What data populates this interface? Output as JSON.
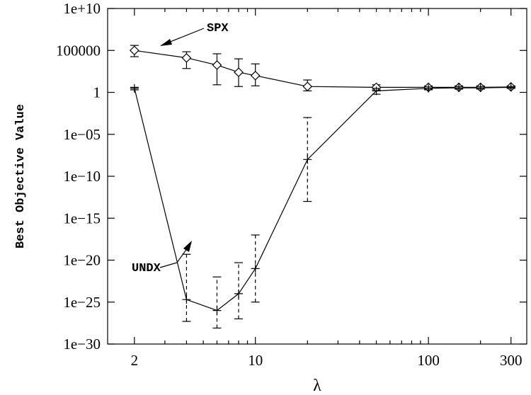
{
  "chart_data": {
    "type": "line",
    "xlabel": "λ",
    "ylabel": "Best Objective Value",
    "x_scale": "log",
    "y_scale": "log",
    "xlim": [
      1.4,
      370
    ],
    "ylim": [
      1e-30,
      10000000000.0
    ],
    "x_ticks": [
      {
        "value": 2,
        "label": "2"
      },
      {
        "value": 10,
        "label": "10"
      },
      {
        "value": 100,
        "label": "100"
      },
      {
        "value": 300,
        "label": "300"
      }
    ],
    "y_ticks": [
      {
        "value": 10000000000.0,
        "label": "1e+10"
      },
      {
        "value": 100000.0,
        "label": "100000"
      },
      {
        "value": 1,
        "label": "1"
      },
      {
        "value": 1e-05,
        "label": "1e−05"
      },
      {
        "value": 1e-10,
        "label": "1e−10"
      },
      {
        "value": 1e-15,
        "label": "1e−15"
      },
      {
        "value": 1e-20,
        "label": "1e−20"
      },
      {
        "value": 1e-25,
        "label": "1e−25"
      },
      {
        "value": 1e-30,
        "label": "1e−30"
      }
    ],
    "series": [
      {
        "name": "SPX",
        "marker": "diamond",
        "errorbar_style": "solid",
        "points": [
          {
            "x": 2,
            "y": 100000.0,
            "low": 18000.0,
            "high": 400000.0
          },
          {
            "x": 4,
            "y": 13000.0,
            "low": 700.0,
            "high": 70000.0
          },
          {
            "x": 6,
            "y": 1800.0,
            "low": 8.0,
            "high": 40000.0
          },
          {
            "x": 8,
            "y": 250.0,
            "low": 5.0,
            "high": 10000.0
          },
          {
            "x": 10,
            "y": 100.0,
            "low": 6.0,
            "high": 2500.0
          },
          {
            "x": 20,
            "y": 5.0,
            "low": 1.5,
            "high": 30.0
          },
          {
            "x": 50,
            "y": 4.0,
            "low": 2.0,
            "high": 8.0
          },
          {
            "x": 100,
            "y": 4.0,
            "low": 2.5,
            "high": 6.0
          },
          {
            "x": 150,
            "y": 4.0,
            "low": 2.5,
            "high": 6.0
          },
          {
            "x": 200,
            "y": 4.0,
            "low": 2.5,
            "high": 6.0
          },
          {
            "x": 300,
            "y": 4.5,
            "low": 3.0,
            "high": 6.0
          }
        ]
      },
      {
        "name": "UNDX",
        "marker": "plus",
        "errorbar_style": "dashed",
        "points": [
          {
            "x": 2,
            "y": 3.0,
            "low": 2.0,
            "high": 4.0
          },
          {
            "x": 4,
            "y": 2e-25,
            "low": 5e-28,
            "high": 5e-20
          },
          {
            "x": 6,
            "y": 1e-26,
            "low": 8e-29,
            "high": 1e-22
          },
          {
            "x": 8,
            "y": 1e-24,
            "low": 1e-27,
            "high": 5e-21
          },
          {
            "x": 10,
            "y": 1e-21,
            "low": 1e-25,
            "high": 1e-17
          },
          {
            "x": 20,
            "y": 1e-08,
            "low": 1e-13,
            "high": 0.001
          },
          {
            "x": 50,
            "y": 1.5,
            "low": 0.6,
            "high": 3.0
          },
          {
            "x": 100,
            "y": 3.0,
            "low": 2.0,
            "high": 4.5
          },
          {
            "x": 150,
            "y": 3.5,
            "low": 2.5,
            "high": 5.0
          },
          {
            "x": 200,
            "y": 3.5,
            "low": 2.5,
            "high": 5.0
          },
          {
            "x": 300,
            "y": 4.0,
            "low": 3.0,
            "high": 5.0
          }
        ]
      }
    ],
    "annotations": [
      {
        "text": "SPX",
        "series": "SPX"
      },
      {
        "text": "UNDX",
        "series": "UNDX"
      }
    ]
  }
}
